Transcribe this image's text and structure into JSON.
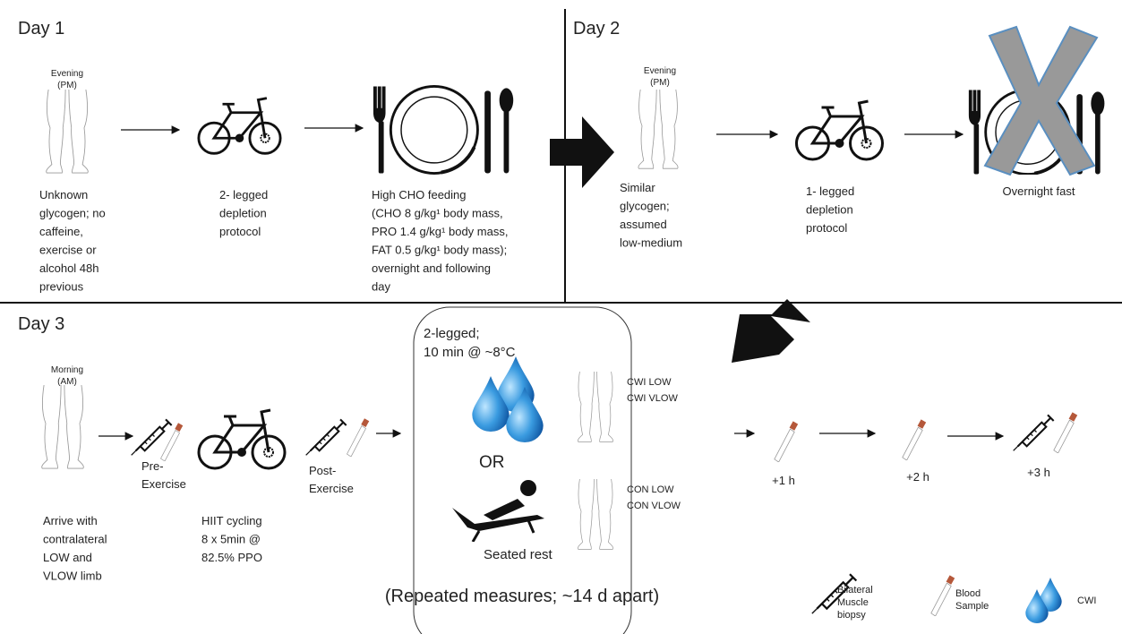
{
  "day1": {
    "title": "Day 1",
    "time": [
      "Evening",
      "(PM)"
    ],
    "baseline": [
      "Unknown",
      "glycogen; no",
      "caffeine,",
      "exercise or",
      "alcohol 48h",
      "previous"
    ],
    "depletion": [
      "2- legged",
      "depletion",
      "protocol"
    ],
    "feeding": [
      "High CHO feeding",
      "(CHO 8 g/kg¹ body mass,",
      "PRO 1.4 g/kg¹ body mass,",
      "FAT 0.5 g/kg¹ body mass);",
      "overnight and following",
      "day"
    ]
  },
  "day2": {
    "title": "Day 2",
    "time": [
      "Evening",
      "(PM)"
    ],
    "baseline": [
      "Similar",
      "glycogen;",
      "assumed",
      "low-medium"
    ],
    "depletion": [
      "1- legged",
      "depletion",
      "protocol"
    ],
    "fast": "Overnight fast"
  },
  "day3": {
    "title": "Day 3",
    "time": [
      "Morning",
      "(AM)"
    ],
    "pre": [
      "Pre-",
      "Exercise"
    ],
    "post": [
      "Post-",
      "Exercise"
    ],
    "arrive": [
      "Arrive with",
      "contralateral",
      "LOW and",
      "VLOW limb"
    ],
    "hiit": [
      "HIIT cycling",
      "8 x 5min @",
      "82.5% PPO"
    ],
    "box": {
      "header": [
        "2-legged;",
        "10 min @ ~8°C"
      ],
      "cwi": [
        "CWI LOW",
        "CWI VLOW"
      ],
      "or": "OR",
      "con": [
        "CON LOW",
        "CON VLOW"
      ],
      "rest": "Seated rest",
      "footer": "(Repeated measures; ~14 d apart)"
    },
    "timepoints": [
      "+1 h",
      "+2 h",
      "+3 h"
    ]
  },
  "legend": [
    {
      "label": [
        "Bilateral",
        "Muscle",
        "biopsy"
      ]
    },
    {
      "label": [
        "Blood",
        "Sample"
      ]
    },
    {
      "label": [
        "CWI"
      ]
    }
  ]
}
